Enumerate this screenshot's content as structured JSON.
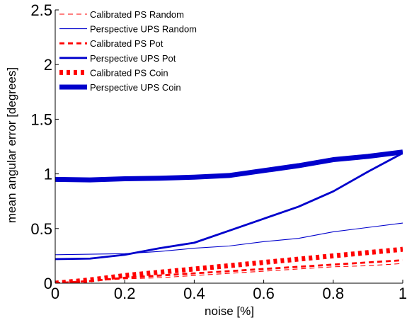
{
  "chart_data": {
    "type": "line",
    "title": "",
    "xlabel": "noise [%]",
    "ylabel": "mean angular error [degrees]",
    "xlim": [
      0,
      1
    ],
    "ylim": [
      0,
      2.5
    ],
    "xticks": [
      "0",
      "0.2",
      "0.4",
      "0.6",
      "0.8",
      "1"
    ],
    "yticks": [
      "0",
      "0.5",
      "1",
      "1.5",
      "2",
      "2.5"
    ],
    "grid": false,
    "legend_position": "top-left",
    "x": [
      0,
      0.1,
      0.2,
      0.3,
      0.4,
      0.5,
      0.6,
      0.7,
      0.8,
      0.9,
      1.0
    ],
    "series": [
      {
        "name": "Calibrated PS Random",
        "color": "#ff0000",
        "style": "dashed",
        "weight": "thin",
        "values": [
          0.0,
          0.02,
          0.04,
          0.05,
          0.07,
          0.09,
          0.11,
          0.13,
          0.15,
          0.16,
          0.18
        ]
      },
      {
        "name": "Perspective UPS Random",
        "color": "#0000cc",
        "style": "solid",
        "weight": "thin",
        "values": [
          0.26,
          0.265,
          0.27,
          0.29,
          0.32,
          0.34,
          0.38,
          0.41,
          0.47,
          0.51,
          0.55
        ]
      },
      {
        "name": "Calibrated PS Pot",
        "color": "#ff0000",
        "style": "dashed",
        "weight": "medium",
        "values": [
          0.0,
          0.02,
          0.05,
          0.07,
          0.09,
          0.11,
          0.13,
          0.15,
          0.17,
          0.19,
          0.21
        ]
      },
      {
        "name": "Perspective UPS Pot",
        "color": "#0000cc",
        "style": "solid",
        "weight": "medium",
        "values": [
          0.22,
          0.225,
          0.26,
          0.32,
          0.37,
          0.48,
          0.59,
          0.7,
          0.84,
          1.02,
          1.19
        ]
      },
      {
        "name": "Calibrated PS Coin",
        "color": "#ff0000",
        "style": "dotted",
        "weight": "thick",
        "values": [
          0.0,
          0.03,
          0.07,
          0.1,
          0.13,
          0.16,
          0.19,
          0.22,
          0.25,
          0.28,
          0.31
        ]
      },
      {
        "name": "Perspective UPS Coin",
        "color": "#0000cc",
        "style": "solid",
        "weight": "thick",
        "values": [
          0.95,
          0.945,
          0.955,
          0.96,
          0.97,
          0.985,
          1.03,
          1.075,
          1.13,
          1.16,
          1.2
        ]
      }
    ]
  }
}
